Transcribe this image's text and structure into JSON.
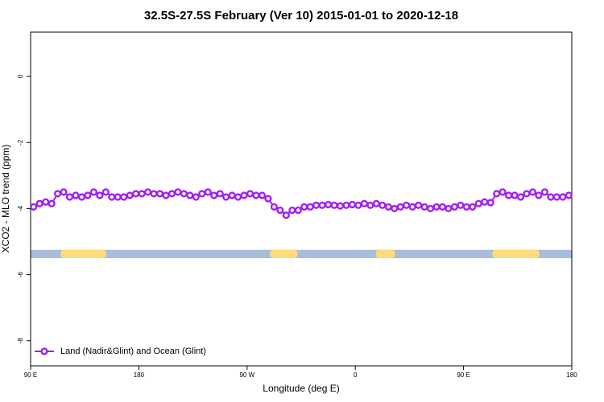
{
  "chart_data": {
    "type": "line",
    "title": "32.5S-27.5S February (Ver 10)   2015-01-01 to 2020-12-18",
    "x_label": "Longitude (deg E)",
    "y_label": "XCO2 - MLO trend (ppm)",
    "xlim": [
      90,
      540
    ],
    "xticks": [
      {
        "value": 90,
        "label": "90 E"
      },
      180,
      {
        "value": 270,
        "label": "90 W"
      },
      {
        "value": 360,
        "label": "0"
      },
      {
        "value": 450,
        "label": "90 E"
      },
      {
        "value": 540,
        "label": "180"
      }
    ],
    "ylim": [
      -8.76,
      1.34
    ],
    "yticks": [
      0,
      -2,
      -4,
      -6,
      -8
    ],
    "legend": "bottomleft",
    "surface_band": {
      "ylim": [
        -5.5,
        -5.25
      ],
      "ocean_color": "#a8bcdc",
      "land_color": "#fedb7a",
      "land_spans": [
        [
          115,
          153
        ],
        [
          289,
          312
        ],
        [
          377,
          393
        ],
        [
          474,
          513
        ]
      ]
    },
    "x": [
      92.5,
      97.5,
      102.5,
      107.5,
      112.5,
      117.5,
      122.5,
      127.5,
      132.5,
      137.5,
      142.5,
      147.5,
      152.5,
      157.5,
      162.5,
      167.5,
      172.5,
      177.5,
      182.5,
      187.5,
      192.5,
      197.5,
      202.5,
      207.5,
      212.5,
      217.5,
      222.5,
      227.5,
      232.5,
      237.5,
      242.5,
      247.5,
      252.5,
      257.5,
      262.5,
      267.5,
      272.5,
      277.5,
      282.5,
      287.5,
      292.5,
      297.5,
      302.5,
      307.5,
      312.5,
      317.5,
      322.5,
      327.5,
      332.5,
      337.5,
      342.5,
      347.5,
      352.5,
      357.5,
      362.5,
      367.5,
      372.5,
      377.5,
      382.5,
      387.5,
      392.5,
      397.5,
      402.5,
      407.5,
      412.5,
      417.5,
      422.5,
      427.5,
      432.5,
      437.5,
      442.5,
      447.5,
      452.5,
      457.5,
      462.5,
      467.5,
      472.5,
      477.5,
      482.5,
      487.5,
      492.5,
      497.5,
      502.5,
      507.5,
      512.5,
      517.5,
      522.5,
      527.5,
      532.5,
      537.5
    ],
    "series": [
      {
        "name": "Land (Nadir&Glint) and Ocean (Glint)",
        "color": "#a020f0",
        "values": [
          -3.95,
          -3.85,
          -3.8,
          -3.85,
          -3.55,
          -3.5,
          -3.65,
          -3.6,
          -3.65,
          -3.6,
          -3.5,
          -3.6,
          -3.5,
          -3.65,
          -3.65,
          -3.65,
          -3.6,
          -3.55,
          -3.55,
          -3.5,
          -3.55,
          -3.55,
          -3.6,
          -3.55,
          -3.5,
          -3.55,
          -3.6,
          -3.65,
          -3.55,
          -3.5,
          -3.6,
          -3.55,
          -3.65,
          -3.6,
          -3.65,
          -3.6,
          -3.55,
          -3.6,
          -3.6,
          -3.7,
          -3.95,
          -4.05,
          -4.2,
          -4.05,
          -4.05,
          -3.95,
          -3.95,
          -3.9,
          -3.9,
          -3.88,
          -3.9,
          -3.92,
          -3.9,
          -3.88,
          -3.9,
          -3.85,
          -3.9,
          -3.85,
          -3.9,
          -3.95,
          -4.0,
          -3.95,
          -3.9,
          -3.95,
          -3.9,
          -3.95,
          -4.0,
          -3.95,
          -3.95,
          -4.0,
          -3.95,
          -3.9,
          -3.95,
          -3.95,
          -3.85,
          -3.8,
          -3.82,
          -3.55,
          -3.5,
          -3.6,
          -3.6,
          -3.65,
          -3.55,
          -3.5,
          -3.6,
          -3.5,
          -3.65,
          -3.65,
          -3.65,
          -3.6
        ]
      }
    ]
  }
}
